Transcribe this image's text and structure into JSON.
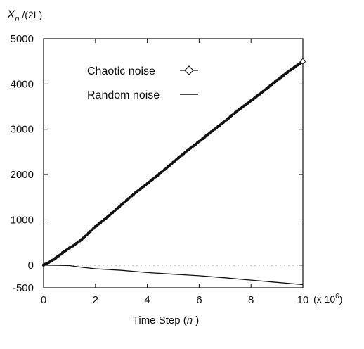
{
  "chart_data": {
    "type": "line",
    "ylabel_main": "X",
    "ylabel_sub": "n",
    "ylabel_rest": " /(2L)",
    "xlabel_main": "Time Step (",
    "xlabel_var": "n",
    "xlabel_close": " )",
    "x_multiplier_text": "(x 10",
    "x_multiplier_exp": "6",
    "x_multiplier_close": ")",
    "xlim": [
      0,
      10
    ],
    "ylim": [
      -500,
      5000
    ],
    "x_ticks": [
      0,
      2,
      4,
      6,
      8,
      10
    ],
    "x_tick_labels": [
      "0",
      "2",
      "4",
      "6",
      "8",
      "10"
    ],
    "y_ticks": [
      -500,
      0,
      1000,
      2000,
      3000,
      4000,
      5000
    ],
    "y_tick_labels": [
      "-500",
      "0",
      "1000",
      "2000",
      "3000",
      "4000",
      "5000"
    ],
    "zero_reference_line": {
      "y": 0,
      "style": "dotted"
    },
    "legend": {
      "position": "top-left",
      "entries": [
        {
          "label": "Chaotic noise",
          "marker": "diamond-line"
        },
        {
          "label": "Random noise",
          "marker": "line"
        }
      ]
    },
    "series": [
      {
        "name": "Chaotic noise",
        "marker": "dot",
        "x": [
          0,
          0.1,
          0.2,
          0.3,
          0.4,
          0.5,
          0.6,
          0.7,
          0.8,
          0.9,
          1.0,
          1.2,
          1.5,
          2.0,
          2.5,
          3.0,
          3.5,
          4.0,
          4.5,
          5.0,
          5.5,
          6.0,
          6.5,
          7.0,
          7.5,
          8.0,
          8.5,
          9.0,
          9.5,
          9.8,
          10.0
        ],
        "y": [
          0,
          30,
          60,
          95,
          130,
          170,
          210,
          260,
          300,
          340,
          380,
          450,
          580,
          850,
          1080,
          1330,
          1580,
          1800,
          2030,
          2270,
          2510,
          2730,
          2960,
          3180,
          3420,
          3630,
          3850,
          4080,
          4300,
          4420,
          4500
        ]
      },
      {
        "name": "Random noise",
        "marker": "none",
        "x": [
          0,
          0.5,
          1.0,
          1.5,
          2.0,
          3.0,
          4.0,
          5.0,
          6.0,
          7.0,
          8.0,
          9.0,
          10.0
        ],
        "y": [
          0,
          -5,
          -10,
          -50,
          -80,
          -115,
          -165,
          -200,
          -235,
          -280,
          -330,
          -380,
          -430
        ]
      }
    ]
  }
}
